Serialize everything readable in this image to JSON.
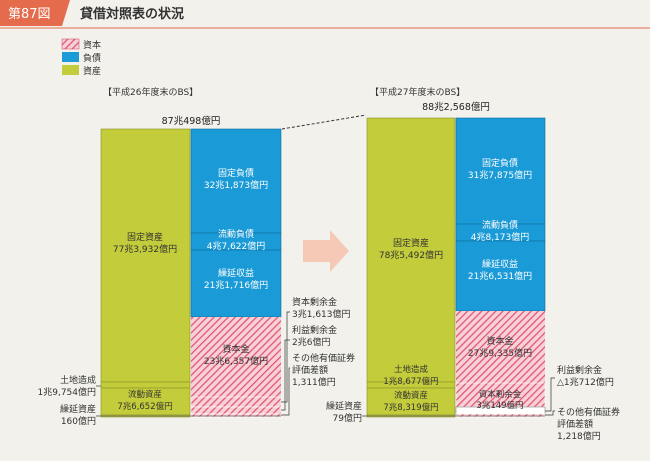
{
  "header": {
    "badge": "第87図",
    "title": "貸借対照表の状況"
  },
  "legend": [
    {
      "label": "資本",
      "key": "capital"
    },
    {
      "label": "負債",
      "key": "liability"
    },
    {
      "label": "資産",
      "key": "asset"
    }
  ],
  "colors": {
    "asset": "#c3cc3a",
    "liability": "#1a9ad6",
    "capital_stripe": "#e0506a",
    "capital_bg": "#f7d0d8",
    "arrow": "#f5c9b6",
    "badge": "#e46c4c"
  },
  "chart_data": {
    "type": "stacked-bar",
    "unit": "億円",
    "years": [
      {
        "heading": "【平成26年度末のBS】",
        "total_label": "87兆498億円",
        "total": 870498,
        "assets": [
          {
            "name": "固定資産",
            "amount": "77兆3,932億円",
            "value": 773932
          },
          {
            "name": "土地造成",
            "amount": "1兆9,754億円",
            "value": 19754
          },
          {
            "name": "流動資産",
            "amount": "7兆6,652億円",
            "value": 76652
          },
          {
            "name": "繰延資産",
            "amount": "160億円",
            "value": 160
          }
        ],
        "liabilities": [
          {
            "name": "固定負債",
            "amount": "32兆1,873億円",
            "value": 321873
          },
          {
            "name": "流動負債",
            "amount": "4兆7,622億円",
            "value": 47622
          },
          {
            "name": "繰延収益",
            "amount": "21兆1,716億円",
            "value": 211716
          }
        ],
        "capital": {
          "name": "資本金",
          "amount": "23兆6,357億円",
          "value": 236357
        },
        "capital_other": [
          {
            "name": "資本剰余金",
            "amount": "3兆1,613億円",
            "value": 31613
          },
          {
            "name": "利益剰余金",
            "amount": "2兆6億円",
            "value": 20006
          },
          {
            "name": "その他有価証券評価差額",
            "line1": "その他有価証券",
            "line2": "評価差額",
            "amount": "1,311億円",
            "value": 1311
          }
        ]
      },
      {
        "heading": "【平成27年度末のBS】",
        "total_label": "88兆2,568億円",
        "total": 882568,
        "assets": [
          {
            "name": "固定資産",
            "amount": "78兆5,492億円",
            "value": 785492
          },
          {
            "name": "土地造成",
            "amount": "1兆8,677億円",
            "value": 18677
          },
          {
            "name": "流動資産",
            "amount": "7兆8,319億円",
            "value": 78319
          },
          {
            "name": "繰延資産",
            "amount": "79億円",
            "value": 79
          }
        ],
        "liabilities": [
          {
            "name": "固定負債",
            "amount": "31兆7,875億円",
            "value": 317875
          },
          {
            "name": "流動負債",
            "amount": "4兆8,173億円",
            "value": 48173
          },
          {
            "name": "繰延収益",
            "amount": "21兆6,531億円",
            "value": 216531
          }
        ],
        "capital": {
          "name": "資本金",
          "amount": "27兆9,335億円",
          "value": 279335
        },
        "capital_other": [
          {
            "name": "資本剰余金",
            "amount": "3兆149億円",
            "value": 30149
          },
          {
            "name": "利益剰余金",
            "amount": "△1兆712億円",
            "value": -10712
          },
          {
            "name": "その他有価証券評価差額",
            "line1": "その他有価証券",
            "line2": "評価差額",
            "amount": "1,218億円",
            "value": 1218
          }
        ]
      }
    ]
  }
}
